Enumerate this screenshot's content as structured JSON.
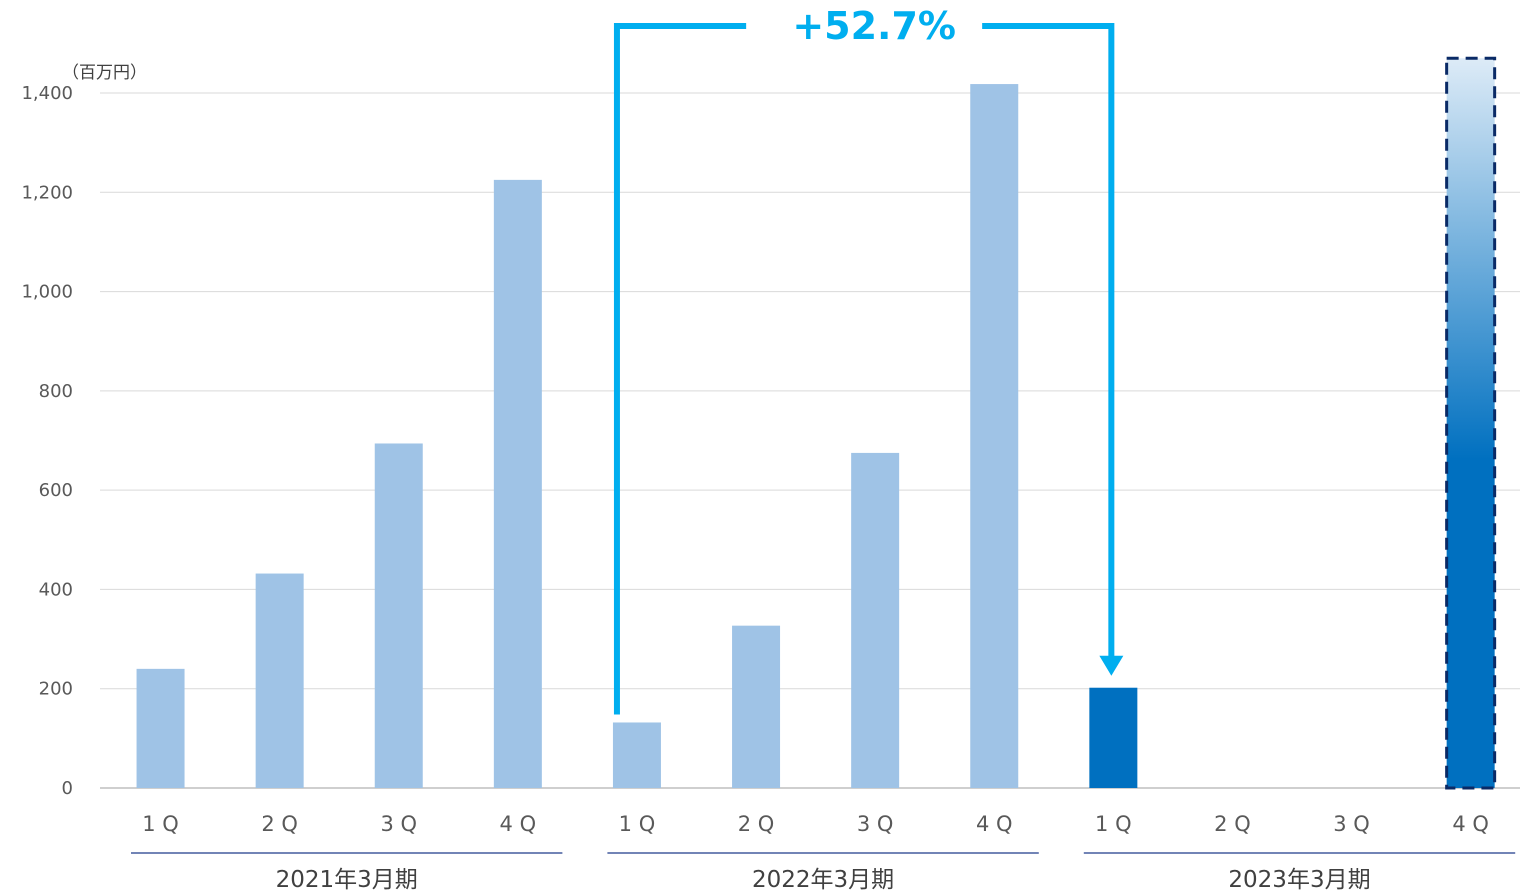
{
  "chart_data": {
    "type": "bar",
    "unit_label": "（百万円）",
    "ylim": [
      0,
      1400
    ],
    "yticks": [
      0,
      200,
      400,
      600,
      800,
      1000,
      1200,
      1400
    ],
    "ytick_labels": [
      "0",
      "200",
      "400",
      "600",
      "800",
      "1,000",
      "1,200",
      "1,400"
    ],
    "grid": true,
    "categories": [
      "1Q",
      "2Q",
      "3Q",
      "4Q",
      "1Q",
      "2Q",
      "3Q",
      "4Q",
      "1Q",
      "2Q",
      "3Q",
      "4Q"
    ],
    "category_labels": [
      "1 Q",
      "2 Q",
      "3 Q",
      "4 Q",
      "1 Q",
      "2 Q",
      "3 Q",
      "4 Q",
      "1 Q",
      "2 Q",
      "3 Q",
      "4 Q"
    ],
    "groups": [
      {
        "label": "2021年3月期",
        "start": 0,
        "end": 3
      },
      {
        "label": "2022年3月期",
        "start": 4,
        "end": 7
      },
      {
        "label": "2023年3月期",
        "start": 8,
        "end": 11
      }
    ],
    "values": [
      240,
      432,
      694,
      1225,
      132,
      327,
      675,
      1418,
      202,
      null,
      null,
      null
    ],
    "forecast": {
      "index": 11,
      "value": 1470
    },
    "growth": {
      "label": "+52.7%",
      "from_index": 4,
      "to_index": 8
    },
    "colors": {
      "past": "#9FC3E6",
      "current": "#0070C0",
      "forecast_top": "#DDEBF7",
      "forecast_bottom": "#0070C0",
      "forecast_outline": "#0A2A66",
      "arrow": "#00AEEF",
      "grid": "#D9D9D9",
      "axis": "#BFBFBF",
      "group_line": "#1F3A8A"
    }
  }
}
